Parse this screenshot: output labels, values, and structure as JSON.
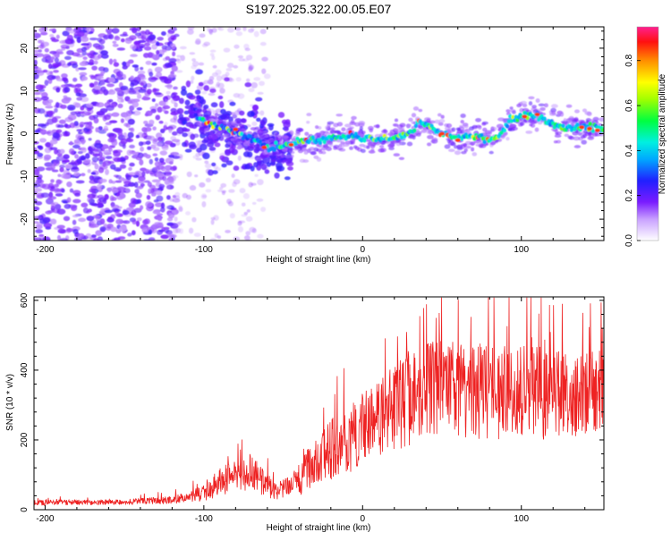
{
  "title": "S197.2025.322.00.05.E07",
  "chart_data": [
    {
      "type": "heatmap",
      "title": "S197.2025.322.00.05.E07",
      "xlabel": "Height of straight line (km)",
      "ylabel": "Frequency (Hz)",
      "xlim": [
        -207,
        152
      ],
      "ylim": [
        -25,
        25
      ],
      "x_ticks": [
        -200,
        -100,
        0,
        100
      ],
      "y_ticks": [
        -20,
        -10,
        0,
        10,
        20
      ],
      "colorbar": {
        "label": "Normalized spectral amplitude",
        "range": [
          0,
          0.95
        ],
        "ticks": [
          0.0,
          0.2,
          0.4,
          0.6,
          0.8
        ]
      },
      "ridge": {
        "x": [
          -105,
          -95,
          -85,
          -75,
          -65,
          -58,
          -50,
          -40,
          -30,
          -20,
          -10,
          0,
          10,
          20,
          30,
          35,
          40,
          50,
          60,
          70,
          80,
          88,
          92,
          100,
          105,
          110,
          118,
          125,
          135,
          145,
          152
        ],
        "frequency": [
          4,
          2,
          1,
          -0.5,
          -2,
          -3.5,
          -3,
          -2,
          -1.5,
          -1,
          -0.5,
          -1,
          -1.5,
          -1,
          0,
          2.5,
          2,
          0,
          -1,
          -0.5,
          -1.5,
          0,
          3,
          4,
          4.5,
          4.5,
          2.5,
          1.5,
          1.5,
          1.5,
          1
        ]
      }
    },
    {
      "type": "line",
      "xlabel": "Height of straight line (km)",
      "ylabel": "SNR (10 * v/v)",
      "xlim": [
        -207,
        152
      ],
      "ylim": [
        0,
        610
      ],
      "x_ticks": [
        -200,
        -100,
        0,
        100
      ],
      "y_ticks": [
        0,
        200,
        400,
        600
      ],
      "series": [
        {
          "name": "SNR",
          "color": "#ee2222",
          "envelope": {
            "x": [
              -207,
              -150,
              -120,
              -100,
              -90,
              -80,
              -70,
              -60,
              -55,
              -45,
              -40,
              -35,
              -30,
              -20,
              -10,
              0,
              10,
              20,
              30,
              40,
              50,
              60,
              80,
              100,
              120,
              140,
              152
            ],
            "mean": [
              20,
              22,
              28,
              45,
              80,
              100,
              110,
              70,
              50,
              65,
              90,
              110,
              140,
              170,
              200,
              230,
              260,
              290,
              320,
              340,
              350,
              345,
              340,
              340,
              330,
              330,
              340
            ],
            "spread": [
              8,
              8,
              12,
              25,
              40,
              50,
              55,
              35,
              25,
              35,
              50,
              60,
              80,
              90,
              100,
              110,
              120,
              130,
              140,
              140,
              140,
              140,
              140,
              140,
              130,
              120,
              120
            ]
          }
        }
      ]
    }
  ]
}
